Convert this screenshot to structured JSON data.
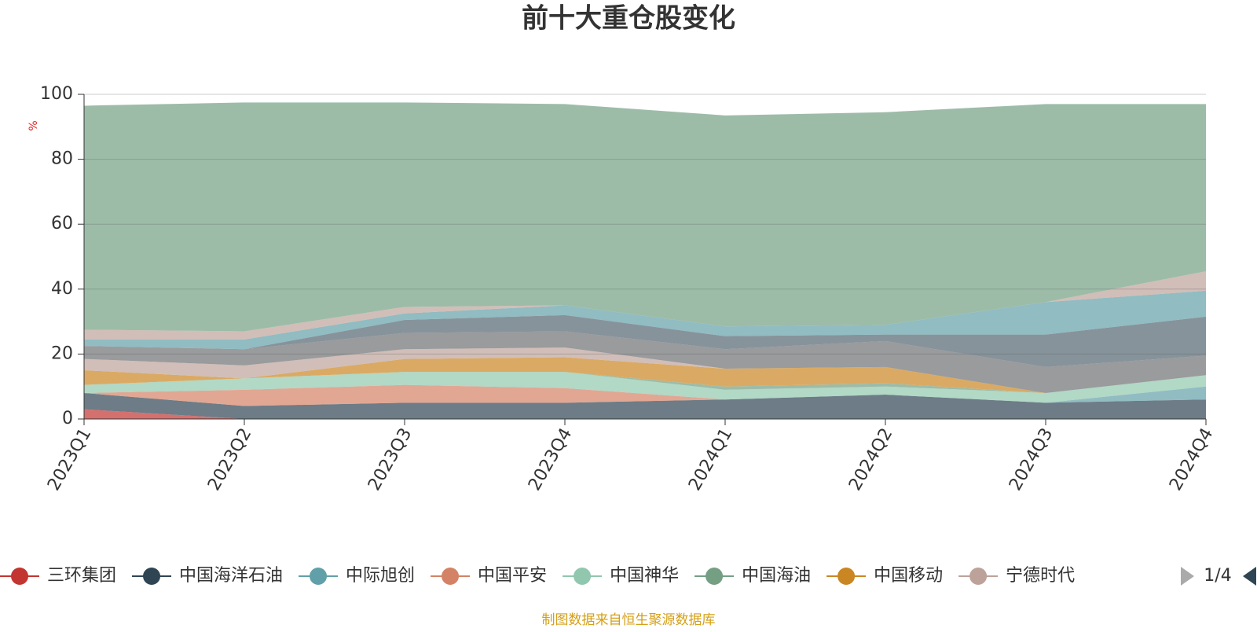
{
  "chart_data": {
    "type": "stacked-area",
    "title": "前十大重仓股变化",
    "y_axis_label": "%",
    "categories": [
      "2023Q1",
      "2023Q2",
      "2023Q3",
      "2023Q4",
      "2024Q1",
      "2024Q2",
      "2024Q3",
      "2024Q4"
    ],
    "ylim": [
      0,
      100
    ],
    "yticks": [
      0,
      20,
      40,
      60,
      80,
      100
    ],
    "grid": true,
    "series": [
      {
        "name": "三环集团",
        "color": "#c23531",
        "values": [
          3,
          0,
          0,
          0,
          0,
          0,
          0,
          0
        ]
      },
      {
        "name": "中国海洋石油",
        "color": "#2f4554",
        "values": [
          5,
          4,
          5,
          5,
          6,
          7.5,
          5,
          6
        ]
      },
      {
        "name": "中际旭创",
        "color": "#61a0a8",
        "values": [
          0,
          0,
          0,
          0,
          0,
          0,
          0,
          4
        ]
      },
      {
        "name": "中国平安",
        "color": "#d48265",
        "values": [
          0,
          5,
          5.5,
          4.5,
          0,
          0,
          0,
          0
        ]
      },
      {
        "name": "中国神华",
        "color": "#91c7ae",
        "values": [
          2.5,
          3.5,
          4,
          5,
          3,
          2.5,
          3,
          3.5
        ]
      },
      {
        "name": "中国海油",
        "color": "#749f83",
        "values": [
          0,
          0,
          0,
          0,
          1,
          1,
          0,
          0
        ]
      },
      {
        "name": "中国移动",
        "color": "#ca8622",
        "values": [
          4.5,
          0,
          4,
          4.5,
          5.5,
          5,
          0,
          0
        ]
      },
      {
        "name": "宁德时代",
        "color": "#bda29a",
        "values": [
          3.5,
          4,
          3,
          3,
          0,
          0,
          0,
          0
        ]
      },
      {
        "color": "#6e7074",
        "values": [
          4,
          5,
          5,
          5,
          6,
          8,
          8,
          6
        ]
      },
      {
        "color": "#546570",
        "values": [
          0,
          0,
          4,
          5,
          4,
          2,
          10,
          12
        ]
      },
      {
        "color": "#61a0a8",
        "values": [
          2,
          3,
          2,
          3,
          3,
          3,
          10,
          8
        ]
      },
      {
        "color": "#bda29a",
        "values": [
          3,
          2.5,
          2,
          0,
          0,
          0,
          0,
          6
        ]
      },
      {
        "color": "#749f83",
        "values": [
          69,
          70.5,
          63,
          62,
          65,
          65.5,
          61,
          51.5
        ]
      }
    ],
    "legend_page": "1/4",
    "source": "制图数据来自恒生聚源数据库"
  }
}
